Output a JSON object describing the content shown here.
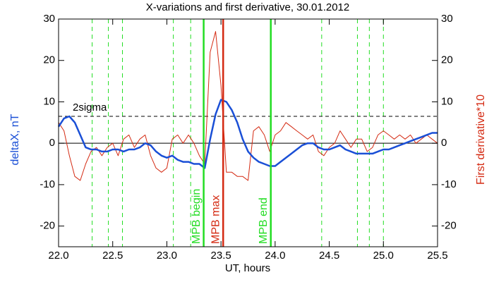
{
  "chart_data": {
    "type": "line",
    "title": "X-variations and first derivative, 30.01.2012",
    "x_label": "UT, hours",
    "y_label": "deltaX, nT",
    "y2_label": "First derivative*10",
    "xlim": [
      22,
      25.5
    ],
    "ylim": [
      -25,
      30
    ],
    "y2lim": [
      -25,
      30
    ],
    "xticks": [
      {
        "value": 22,
        "label": "22.0"
      },
      22.5,
      {
        "value": 23,
        "label": "23.0"
      },
      23.5,
      {
        "value": 24,
        "label": "24.0"
      },
      24.5,
      {
        "value": 25,
        "label": "25.0"
      },
      25.5
    ],
    "yticks": [
      -20,
      -10,
      0,
      10,
      20,
      30
    ],
    "y2ticks": [
      -20,
      -10,
      0,
      10,
      20,
      30
    ],
    "zero_line": true,
    "x": [
      22.0,
      22.05,
      22.1,
      22.15,
      22.2,
      22.25,
      22.3,
      22.35,
      22.4,
      22.45,
      22.5,
      22.55,
      22.6,
      22.65,
      22.7,
      22.75,
      22.8,
      22.85,
      22.9,
      22.95,
      23.0,
      23.05,
      23.1,
      23.15,
      23.2,
      23.25,
      23.3,
      23.35,
      23.4,
      23.45,
      23.5,
      23.55,
      23.6,
      23.65,
      23.7,
      23.75,
      23.8,
      23.85,
      23.9,
      23.95,
      24.0,
      24.05,
      24.1,
      24.15,
      24.2,
      24.25,
      24.3,
      24.35,
      24.4,
      24.45,
      24.5,
      24.55,
      24.6,
      24.65,
      24.7,
      24.75,
      24.8,
      24.85,
      24.9,
      24.95,
      25.0,
      25.05,
      25.1,
      25.15,
      25.2,
      25.25,
      25.3,
      25.35,
      25.4,
      25.45,
      25.5
    ],
    "series": [
      {
        "color": "#1a4fd6",
        "values": [
          4,
          6,
          6.5,
          5,
          2,
          -1,
          -1.5,
          -1.5,
          -2,
          -2,
          -1.5,
          -1.5,
          -2,
          -1.5,
          -1.5,
          -1,
          0,
          -0.5,
          -2,
          -3,
          -3.5,
          -3,
          -4,
          -4.5,
          -4.5,
          -5,
          -5,
          -6,
          1,
          7,
          10.5,
          10,
          8,
          5,
          1,
          -2,
          -3.5,
          -4.5,
          -5,
          -5.5,
          -5.5,
          -4.5,
          -3.5,
          -2.5,
          -1.5,
          -0.5,
          0,
          0,
          -1,
          -1.5,
          -1.5,
          -1,
          -0.5,
          -1.5,
          -2,
          -2.5,
          -2.5,
          -2.5,
          -2.5,
          -2,
          -1.5,
          -1.5,
          -1,
          -0.5,
          0,
          0.5,
          1,
          1.5,
          2,
          2.5,
          2.5
        ]
      },
      {
        "color": "#d42a12",
        "axis": "y2",
        "values": [
          5,
          3,
          -3,
          -8,
          -9,
          -5,
          -2,
          -1,
          -3,
          -1,
          0,
          -3,
          1,
          2,
          -1,
          1,
          2,
          -3,
          -6,
          -7,
          -6,
          1,
          2,
          0,
          2,
          0,
          -3,
          -5,
          22,
          27,
          14,
          -7,
          -7,
          -8,
          -8,
          -9,
          3,
          4,
          2,
          -2,
          2,
          3,
          5,
          4,
          3,
          2,
          1,
          2,
          -2,
          -3,
          -1,
          0,
          3,
          1,
          -1,
          1,
          1,
          -2,
          -1,
          2,
          3,
          2,
          1,
          2,
          1,
          2,
          0,
          1,
          2,
          1,
          0
        ]
      }
    ],
    "dashed_vlines": {
      "color": "#22dd22",
      "x": [
        22.31,
        22.46,
        22.59,
        23.06,
        23.22,
        24.43,
        24.76,
        24.87,
        25.0
      ]
    },
    "vlines": [
      {
        "x": 23.34,
        "label": "MPB begin",
        "color": "#22dd22"
      },
      {
        "x": 23.52,
        "label": "MPB max",
        "color": "#d42a12"
      },
      {
        "x": 23.96,
        "label": "MPB end",
        "color": "#22dd22"
      }
    ],
    "hline": {
      "y": 6.5,
      "label": "2sigma"
    }
  }
}
